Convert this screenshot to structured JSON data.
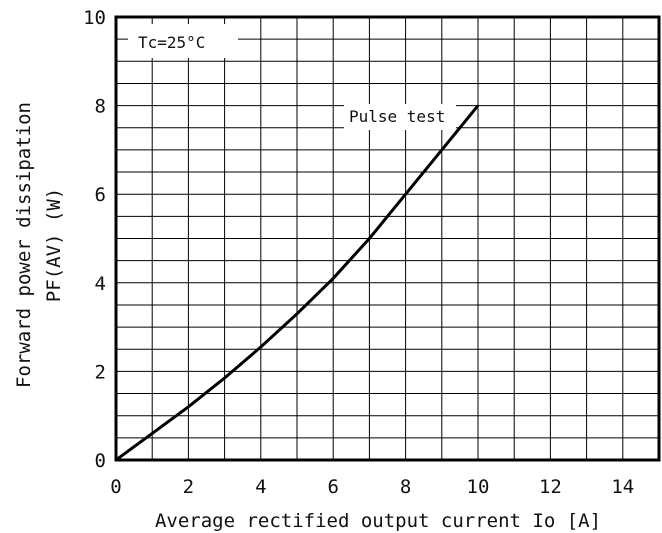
{
  "chart_data": {
    "type": "line",
    "xlabel": "Average rectified output current Io [A]",
    "ylabel_line1": "Forward power dissipation",
    "ylabel_line2": "PF(AV) (W)",
    "xlim": [
      0,
      15
    ],
    "ylim": [
      0,
      10
    ],
    "x_ticks": [
      0,
      2,
      4,
      6,
      8,
      10,
      12,
      14
    ],
    "y_ticks": [
      0,
      2,
      4,
      6,
      8,
      10
    ],
    "x_grid_step": 1,
    "y_grid_step": 1,
    "grid": true,
    "condition_label": "Tc=25°C",
    "series": [
      {
        "name": "Pulse test",
        "x": [
          0,
          1,
          2,
          3,
          4,
          5,
          6,
          7,
          8,
          9,
          10
        ],
        "y": [
          0,
          0.6,
          1.2,
          1.85,
          2.55,
          3.3,
          4.1,
          5.0,
          6.0,
          7.0,
          8.0
        ]
      }
    ]
  }
}
